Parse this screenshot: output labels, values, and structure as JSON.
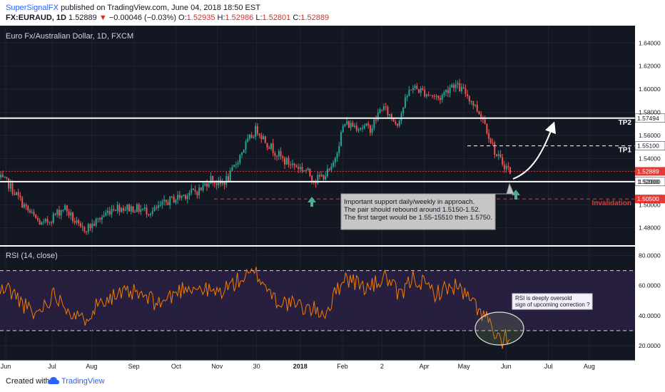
{
  "header": {
    "publisher": "SuperSignalFX",
    "published_text": "published on TradingView.com, June 04, 2018 18:50 EST",
    "symbol": "FX:EURAUD, 1D",
    "last": "1.52889",
    "change_arrow": "▼",
    "change": "−0.00046 (−0.03%)",
    "o_label": "O:",
    "o_value": "1.52935",
    "h_label": "H:",
    "h_value": "1.52986",
    "l_label": "L:",
    "l_value": "1.52801",
    "c_label": "C:",
    "c_value": "1.52889"
  },
  "footer": {
    "created_with": "Created with",
    "brand": "TradingView",
    "logo_icon": "tradingview-cloud-icon"
  },
  "colors": {
    "up": "#26a69a",
    "down": "#ef5350",
    "rsi_line": "#f57c00",
    "rsi_band": "#e9e1f4",
    "red_line": "#e53935",
    "panel_bg": "#ffffff"
  },
  "chart_data": [
    {
      "type": "candlestick",
      "title": "Euro Fx/Australian Dollar, 1D, FXCM",
      "ylim": [
        1.465,
        1.655
      ],
      "x_ticks": [
        "Jun",
        "Jul",
        "Aug",
        "Sep",
        "Oct",
        "Nov",
        "30",
        "2018",
        "Feb",
        "2",
        "Apr",
        "May",
        "Jun",
        "Jul",
        "Aug"
      ],
      "y_ticks": [
        "1.64000",
        "1.62000",
        "1.60000",
        "1.58000",
        "1.56000",
        "1.54000",
        "1.52000",
        "1.50000",
        "1.48000"
      ],
      "price_anchors": [
        {
          "x": "2017-05-25",
          "y": 1.523
        },
        {
          "x": "2017-06-01",
          "y": 1.518
        },
        {
          "x": "2017-06-15",
          "y": 1.495
        },
        {
          "x": "2017-06-26",
          "y": 1.482
        },
        {
          "x": "2017-07-12",
          "y": 1.498
        },
        {
          "x": "2017-07-24",
          "y": 1.478
        },
        {
          "x": "2017-08-01",
          "y": 1.482
        },
        {
          "x": "2017-08-17",
          "y": 1.498
        },
        {
          "x": "2017-09-01",
          "y": 1.497
        },
        {
          "x": "2017-09-15",
          "y": 1.494
        },
        {
          "x": "2017-09-26",
          "y": 1.503
        },
        {
          "x": "2017-10-09",
          "y": 1.509
        },
        {
          "x": "2017-10-20",
          "y": 1.513
        },
        {
          "x": "2017-10-27",
          "y": 1.523
        },
        {
          "x": "2017-11-03",
          "y": 1.517
        },
        {
          "x": "2017-11-10",
          "y": 1.524
        },
        {
          "x": "2017-11-20",
          "y": 1.548
        },
        {
          "x": "2017-11-30",
          "y": 1.566
        },
        {
          "x": "2017-12-08",
          "y": 1.553
        },
        {
          "x": "2017-12-20",
          "y": 1.538
        },
        {
          "x": "2018-01-05",
          "y": 1.53
        },
        {
          "x": "2018-01-12",
          "y": 1.521
        },
        {
          "x": "2018-01-24",
          "y": 1.53
        },
        {
          "x": "2018-02-02",
          "y": 1.57
        },
        {
          "x": "2018-02-13",
          "y": 1.568
        },
        {
          "x": "2018-02-22",
          "y": 1.566
        },
        {
          "x": "2018-03-02",
          "y": 1.585
        },
        {
          "x": "2018-03-13",
          "y": 1.57
        },
        {
          "x": "2018-03-23",
          "y": 1.602
        },
        {
          "x": "2018-04-01",
          "y": 1.598
        },
        {
          "x": "2018-04-13",
          "y": 1.592
        },
        {
          "x": "2018-04-23",
          "y": 1.605
        },
        {
          "x": "2018-05-03",
          "y": 1.596
        },
        {
          "x": "2018-05-15",
          "y": 1.575
        },
        {
          "x": "2018-05-25",
          "y": 1.542
        },
        {
          "x": "2018-06-04",
          "y": 1.529
        }
      ],
      "horizontal_levels": [
        {
          "name": "TP2",
          "label": "TP2",
          "price": 1.57494,
          "price_label": "1.57494",
          "style": "solid-white"
        },
        {
          "name": "TP1",
          "label": "TP1",
          "price": 1.551,
          "price_label": "1.55100",
          "style": "dashed-white"
        },
        {
          "name": "current",
          "price": 1.52889,
          "price_label": "1.52889",
          "style": "dotted-red"
        },
        {
          "name": "support",
          "price": 1.52,
          "price_label": "1.52000",
          "style": "solid-white"
        },
        {
          "name": "invalidation",
          "label": "Invalidation",
          "price": 1.505,
          "price_label": "1.50500",
          "style": "dashed-red"
        }
      ],
      "annotations": [
        "Important support daily/weekly in approach.",
        "The pair should rebound around 1.5150-1.52.",
        "The first target would be 1.55-15510 then 1.5750."
      ]
    },
    {
      "type": "line",
      "title": "RSI (14, close)",
      "ylim": [
        10,
        86
      ],
      "y_ticks": [
        "80.0000",
        "60.0000",
        "40.0000",
        "20.0000"
      ],
      "upper_band": 70,
      "lower_band": 30,
      "rsi_anchors": [
        {
          "x": "2017-05-25",
          "y": 56
        },
        {
          "x": "2017-06-01",
          "y": 58
        },
        {
          "x": "2017-06-20",
          "y": 40
        },
        {
          "x": "2017-07-05",
          "y": 55
        },
        {
          "x": "2017-07-24",
          "y": 36
        },
        {
          "x": "2017-08-10",
          "y": 52
        },
        {
          "x": "2017-09-01",
          "y": 55
        },
        {
          "x": "2017-09-20",
          "y": 48
        },
        {
          "x": "2017-10-10",
          "y": 60
        },
        {
          "x": "2017-11-01",
          "y": 55
        },
        {
          "x": "2017-11-20",
          "y": 65
        },
        {
          "x": "2017-11-30",
          "y": 68
        },
        {
          "x": "2017-12-15",
          "y": 50
        },
        {
          "x": "2018-01-10",
          "y": 44
        },
        {
          "x": "2018-01-20",
          "y": 42
        },
        {
          "x": "2018-02-02",
          "y": 66
        },
        {
          "x": "2018-02-20",
          "y": 58
        },
        {
          "x": "2018-03-05",
          "y": 66
        },
        {
          "x": "2018-03-15",
          "y": 52
        },
        {
          "x": "2018-03-25",
          "y": 66
        },
        {
          "x": "2018-04-10",
          "y": 55
        },
        {
          "x": "2018-04-25",
          "y": 60
        },
        {
          "x": "2018-05-10",
          "y": 46
        },
        {
          "x": "2018-05-18",
          "y": 38
        },
        {
          "x": "2018-05-25",
          "y": 24
        },
        {
          "x": "2018-05-30",
          "y": 20
        },
        {
          "x": "2018-06-01",
          "y": 28
        },
        {
          "x": "2018-06-04",
          "y": 22
        }
      ],
      "annotations": [
        "RSI is deeply oversold",
        "sign of upcoming correction ?"
      ]
    }
  ]
}
